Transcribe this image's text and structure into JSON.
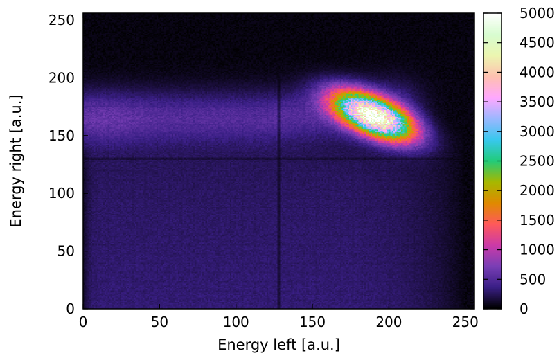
{
  "chart_data": {
    "type": "heatmap",
    "title": "",
    "xlabel": "Energy left [a.u.]",
    "ylabel": "Energy right [a.u.]",
    "xlim": [
      0,
      256
    ],
    "ylim": [
      0,
      256
    ],
    "x_ticks": [
      0,
      50,
      100,
      150,
      200,
      250
    ],
    "y_ticks": [
      0,
      50,
      100,
      150,
      200,
      250
    ],
    "bins": [
      256,
      256
    ],
    "colorbar": {
      "min": 0,
      "max": 5000,
      "ticks": [
        0,
        500,
        1000,
        1500,
        2000,
        2500,
        3000,
        3500,
        4000,
        4500,
        5000
      ],
      "colormap": [
        "#000000",
        "#3a1f86",
        "#7a3fb6",
        "#cc3aa8",
        "#ff5a5a",
        "#e08a00",
        "#a7b800",
        "#22cc7a",
        "#38c8ee",
        "#9ab8ff",
        "#ffa8ff",
        "#ffc0b0",
        "#ecf6b0",
        "#d8fcd0",
        "#ffffff"
      ]
    },
    "features": [
      {
        "name": "peak",
        "x": 190,
        "y": 167,
        "max_count": 5000
      },
      {
        "name": "upper-band",
        "y_center": 165,
        "x_range": [
          0,
          215
        ],
        "count": 350
      },
      {
        "name": "lower-background",
        "x_range": [
          0,
          250
        ],
        "y_range": [
          0,
          140
        ],
        "count": 150
      },
      {
        "name": "dead-column",
        "x": 128
      },
      {
        "name": "dead-row",
        "y": 130
      }
    ]
  }
}
